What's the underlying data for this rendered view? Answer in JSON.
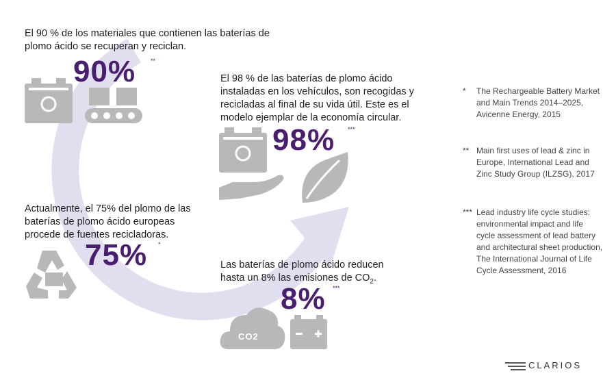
{
  "colors": {
    "accent": "#4a1e6e",
    "icon_gray": "#b8b8b8",
    "arrow": "#e1def0"
  },
  "stat_90": {
    "text": "El 90 % de los materiales que contienen las baterías de plomo ácido se recuperan y reciclan.",
    "value": "90%",
    "ref": "**"
  },
  "stat_98": {
    "text": "El 98 % de las baterías de plomo ácido instaladas en los vehículos, son recogidas y recicladas al final de su vida útil. Este es el modelo ejemplar de la economía circular.",
    "value": "98%",
    "ref": "***"
  },
  "stat_75": {
    "text": "Actualmente, el 75% del plomo de las baterías de plomo ácido europeas procede de fuentes recicladoras.",
    "value": "75%",
    "ref": "*"
  },
  "stat_8": {
    "text_main": "Las baterías de plomo ácido reducen hasta un 8% las emisiones de CO",
    "text_sub": "2",
    "text_end": ".",
    "value": "8%",
    "ref": "***"
  },
  "cloud_label": "CO2",
  "footnotes": [
    {
      "mark": "*",
      "text": "The Rechargeable Battery Market and Main Trends 2014–2025, Avicenne Energy, 2015"
    },
    {
      "mark": "**",
      "text": "Main first uses of lead & zinc in Europe, International Lead and Zinc Study Group (ILZSG), 2017"
    },
    {
      "mark": "***",
      "text": "Lead industry life cycle studies: environmental impact and life cycle assessment of lead battery and architectural sheet production, The International Journal of Life Cycle Assessment, 2016"
    }
  ],
  "logo": "CLARIOS"
}
